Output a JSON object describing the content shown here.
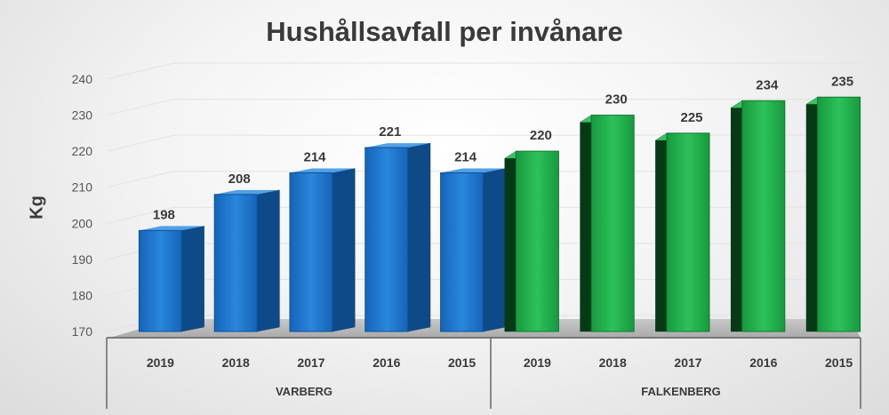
{
  "chart_data": {
    "type": "bar",
    "title": "Hushållsavfall per invånare",
    "ylabel": "Kg",
    "xlabel": "",
    "ylim": [
      170,
      240
    ],
    "yticks": [
      170,
      180,
      190,
      200,
      210,
      220,
      230,
      240
    ],
    "grid": true,
    "groups": [
      {
        "name": "VARBERG",
        "color": "#1a73c8",
        "categories": [
          "2019",
          "2018",
          "2017",
          "2016",
          "2015"
        ],
        "values": [
          198,
          208,
          214,
          221,
          214
        ]
      },
      {
        "name": "FALKENBERG",
        "color": "#1fa84a",
        "categories": [
          "2019",
          "2018",
          "2017",
          "2016",
          "2015"
        ],
        "values": [
          220,
          230,
          225,
          234,
          235
        ]
      }
    ]
  }
}
